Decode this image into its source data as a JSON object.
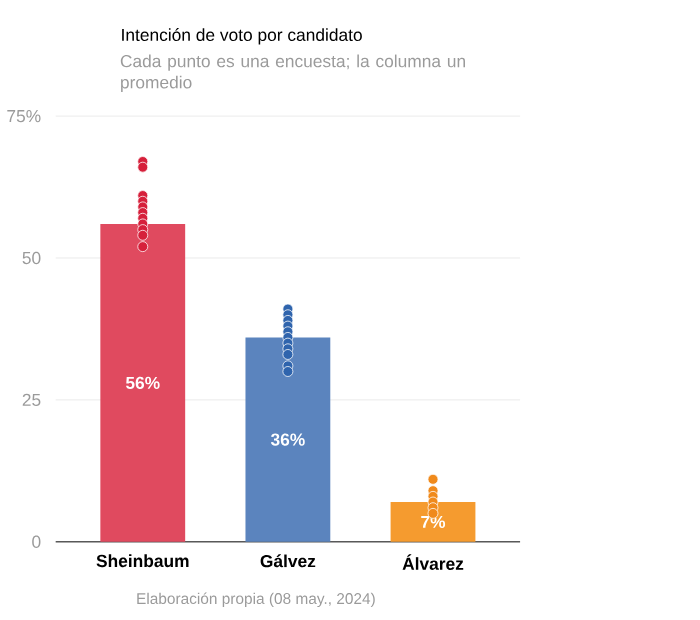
{
  "chart_data": {
    "type": "bar",
    "title": "Intención de voto por candidato",
    "subtitle": "Cada punto es una encuesta; la columna un promedio",
    "categories": [
      "Sheinbaum",
      "Gálvez",
      "Álvarez"
    ],
    "series": [
      {
        "values": [
          56,
          36,
          7
        ],
        "colors": [
          "#e04a5f",
          "#5b84be",
          "#f59b2f"
        ],
        "value_labels": [
          "56%",
          "36%",
          "7%"
        ]
      },
      {
        "type": "scatter",
        "color": "#d6203b",
        "x": [
          "Sheinbaum",
          "Sheinbaum",
          "Sheinbaum",
          "Sheinbaum",
          "Sheinbaum",
          "Sheinbaum",
          "Sheinbaum",
          "Sheinbaum",
          "Sheinbaum",
          "Sheinbaum",
          "Sheinbaum"
        ],
        "values": [
          67,
          66,
          61,
          60,
          59,
          58,
          57,
          56,
          55,
          54,
          52
        ]
      },
      {
        "type": "scatter",
        "color": "#2f64ad",
        "x": [
          "Gálvez",
          "Gálvez",
          "Gálvez",
          "Gálvez",
          "Gálvez",
          "Gálvez",
          "Gálvez",
          "Gálvez",
          "Gálvez",
          "Gálvez",
          "Gálvez"
        ],
        "values": [
          41,
          40,
          39,
          38,
          37,
          36,
          35,
          34,
          33,
          31,
          30
        ]
      },
      {
        "type": "scatter",
        "color": "#f08a1c",
        "x": [
          "Álvarez",
          "Álvarez",
          "Álvarez",
          "Álvarez",
          "Álvarez",
          "Álvarez"
        ],
        "values": [
          11,
          9,
          8,
          7,
          6,
          5
        ]
      }
    ],
    "ylim": [
      0,
      75
    ],
    "yticks": [
      0,
      25,
      50,
      {
        "value": 75,
        "label": "75%"
      }
    ],
    "grid": "y",
    "marker": "circle",
    "annotations": [
      "Elaboración propia (08 may., 2024)"
    ]
  }
}
